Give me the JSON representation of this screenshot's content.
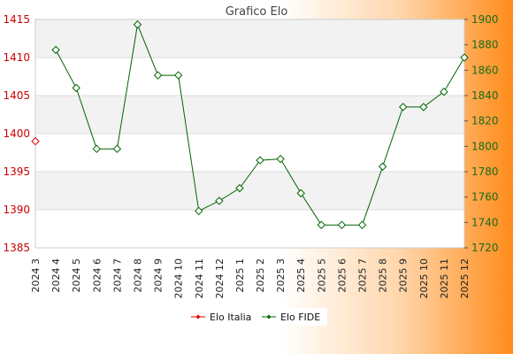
{
  "chart_data": {
    "type": "line",
    "title": "Grafico Elo",
    "categories": [
      "2024 3",
      "2024 4",
      "2024 5",
      "2024 6",
      "2024 7",
      "2024 8",
      "2024 9",
      "2024 10",
      "2024 11",
      "2024 12",
      "2025 1",
      "2025 2",
      "2025 3",
      "2025 4",
      "2025 5",
      "2025 6",
      "2025 7",
      "2025 8",
      "2025 9",
      "2025 10",
      "2025 11",
      "2025 12"
    ],
    "y_left": {
      "min": 1385,
      "max": 1415,
      "ticks": [
        1385,
        1390,
        1395,
        1400,
        1405,
        1410,
        1415
      ]
    },
    "y_right": {
      "min": 1720,
      "max": 1900,
      "ticks": [
        1720,
        1740,
        1760,
        1780,
        1800,
        1820,
        1840,
        1860,
        1880,
        1900
      ]
    },
    "grid": true,
    "legend_position": "bottom",
    "series": [
      {
        "name": "Elo Italia",
        "axis": "left",
        "color": "#dd0000",
        "values": [
          1399,
          null,
          null,
          null,
          null,
          null,
          null,
          null,
          null,
          null,
          null,
          null,
          null,
          null,
          null,
          null,
          null,
          null,
          null,
          null,
          null,
          null
        ]
      },
      {
        "name": "Elo FIDE",
        "axis": "right",
        "color": "#006400",
        "values": [
          null,
          1876,
          1846,
          1798,
          1798,
          1896,
          1856,
          1856,
          1749,
          1757,
          1767,
          1789,
          1790,
          1763,
          1738,
          1738,
          1738,
          1784,
          1831,
          1831,
          1843,
          1870
        ]
      }
    ]
  }
}
